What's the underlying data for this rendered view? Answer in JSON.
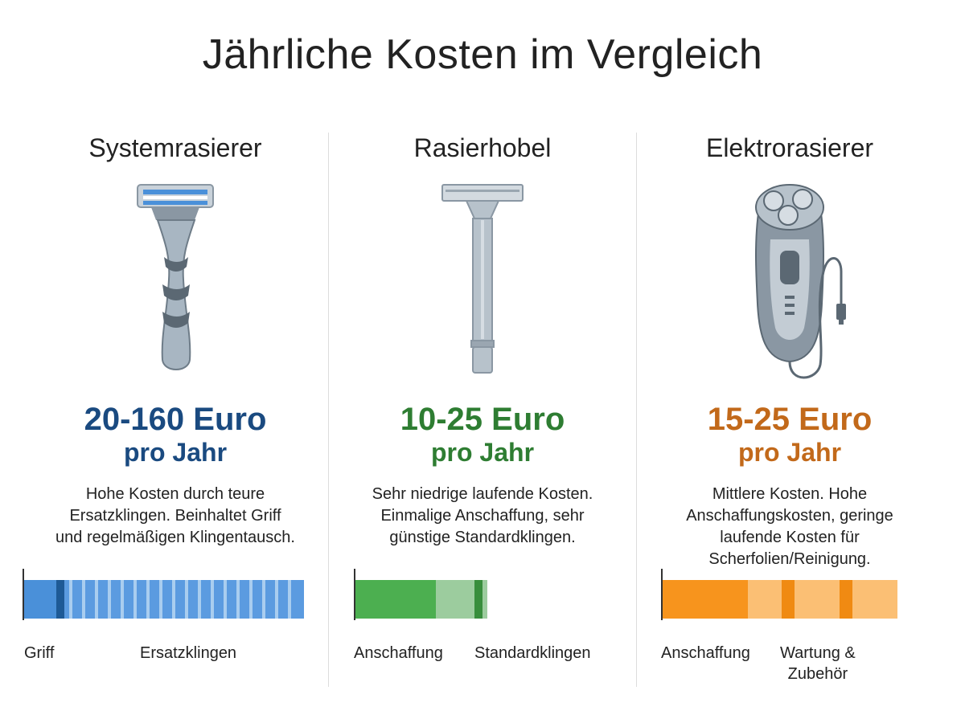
{
  "title": "Jährliche Kosten im Vergleich",
  "colors": {
    "blue": "#1a4a80",
    "green": "#2e7d32",
    "orange": "#c2691a"
  },
  "columns": [
    {
      "name": "Systemrasierer",
      "icon": "cartridge-razor-icon",
      "price": "20-160 Euro",
      "per": "pro Jahr",
      "desc": [
        "Hohe Kosten durch teure",
        "Ersatzklingen. Beinhaltet Griff",
        "und regelmäßigen Klingentausch."
      ],
      "bar_labels": [
        "Griff",
        "Ersatzklingen"
      ]
    },
    {
      "name": "Rasierhobel",
      "icon": "safety-razor-icon",
      "price": "10-25 Euro",
      "per": "pro Jahr",
      "desc": [
        "Sehr niedrige laufende Kosten.",
        "Einmalige Anschaffung, sehr",
        "günstige Standardklingen."
      ],
      "bar_labels": [
        "Anschaffung",
        "Standardklingen"
      ]
    },
    {
      "name": "Elektrorasierer",
      "icon": "electric-shaver-icon",
      "price": "15-25 Euro",
      "per": "pro Jahr",
      "desc": [
        "Mittlere Kosten. Hohe",
        "Anschaffungskosten, geringe",
        "laufende Kosten für",
        "Scherfolien/Reinigung."
      ],
      "bar_labels": [
        "Anschaffung",
        "Wartung &\nZubehör"
      ]
    }
  ]
}
